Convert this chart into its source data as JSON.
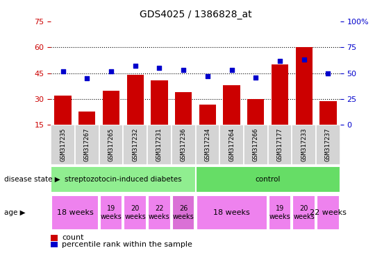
{
  "title": "GDS4025 / 1386828_at",
  "samples": [
    "GSM317235",
    "GSM317267",
    "GSM317265",
    "GSM317232",
    "GSM317231",
    "GSM317236",
    "GSM317234",
    "GSM317264",
    "GSM317266",
    "GSM317177",
    "GSM317233",
    "GSM317237"
  ],
  "counts": [
    32,
    23,
    35,
    44,
    41,
    34,
    27,
    38,
    30,
    50,
    60,
    29
  ],
  "percentiles": [
    52,
    45,
    52,
    57,
    55,
    53,
    47,
    53,
    46,
    62,
    63,
    50
  ],
  "ylim_left": [
    15,
    75
  ],
  "ylim_right": [
    0,
    100
  ],
  "yticks_left": [
    15,
    30,
    45,
    60,
    75
  ],
  "yticks_right": [
    0,
    25,
    50,
    75,
    100
  ],
  "bar_color": "#cc0000",
  "dot_color": "#0000cc",
  "grid_color": "#000000",
  "bg_color": "#ffffff",
  "plot_bg": "#ffffff",
  "xlabel_bg": "#d0d0d0",
  "disease_groups": [
    {
      "label": "streptozotocin-induced diabetes",
      "start": 0,
      "end": 6,
      "color": "#90ee90"
    },
    {
      "label": "control",
      "start": 6,
      "end": 12,
      "color": "#66dd66"
    }
  ],
  "age_groups": [
    {
      "label": "18 weeks",
      "start": 0,
      "end": 2,
      "color": "#ee82ee",
      "fontsize": 8
    },
    {
      "label": "19\nweeks",
      "start": 2,
      "end": 3,
      "color": "#ee82ee",
      "fontsize": 7
    },
    {
      "label": "20\nweeks",
      "start": 3,
      "end": 4,
      "color": "#ee82ee",
      "fontsize": 7
    },
    {
      "label": "22\nweeks",
      "start": 4,
      "end": 5,
      "color": "#ee82ee",
      "fontsize": 7
    },
    {
      "label": "26\nweeks",
      "start": 5,
      "end": 6,
      "color": "#da70d6",
      "fontsize": 7
    },
    {
      "label": "18 weeks",
      "start": 6,
      "end": 9,
      "color": "#ee82ee",
      "fontsize": 8
    },
    {
      "label": "19\nweeks",
      "start": 9,
      "end": 10,
      "color": "#ee82ee",
      "fontsize": 7
    },
    {
      "label": "20\nweeks",
      "start": 10,
      "end": 11,
      "color": "#ee82ee",
      "fontsize": 7
    },
    {
      "label": "22 weeks",
      "start": 11,
      "end": 12,
      "color": "#ee82ee",
      "fontsize": 8
    }
  ],
  "tick_label_color_left": "#cc0000",
  "tick_label_color_right": "#0000cc",
  "legend_items": [
    {
      "label": "count",
      "color": "#cc0000"
    },
    {
      "label": "percentile rank within the sample",
      "color": "#0000cc"
    }
  ],
  "disease_state_label": "disease state",
  "age_label": "age"
}
